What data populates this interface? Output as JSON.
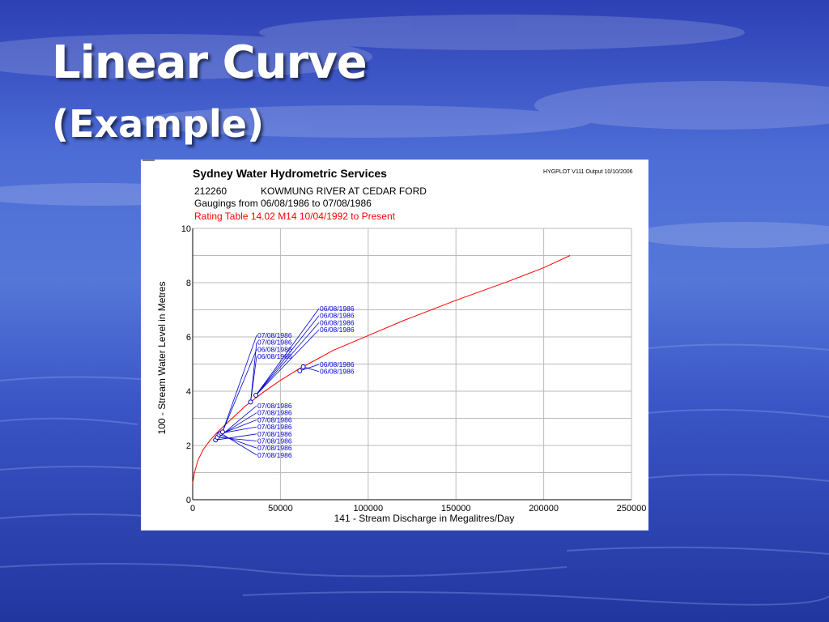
{
  "slide": {
    "title": "Linear Curve",
    "subtitle": "(Example)"
  },
  "chart_data": {
    "type": "scatter",
    "title": "Sydney Water Hydrometric Services",
    "program_note": "HYGPLOT V111  Output 10/10/2006",
    "station_id": "212260",
    "station_name": "KOWMUNG RIVER AT CEDAR FORD",
    "gaugings_range": "Gaugings from 06/08/1986 to 07/08/1986",
    "rating_note": "Rating Table  14.02  M14  10/04/1992 to Present",
    "xlabel": "141 - Stream Discharge in Megalitres/Day",
    "ylabel": "100 - Stream Water Level in Metres",
    "xlim": [
      0,
      250000
    ],
    "ylim": [
      0,
      10
    ],
    "xticks": [
      0,
      50000,
      100000,
      150000,
      200000,
      250000
    ],
    "yticks": [
      0,
      2,
      4,
      6,
      8,
      10
    ],
    "grid": true,
    "colors": {
      "rating_curve": "#ff0000",
      "gaugings": "#0000cc",
      "rating_note": "#ff0000",
      "grid": "#bbbbbb"
    },
    "series": [
      {
        "type": "line",
        "x": [
          0,
          1000,
          3000,
          6000,
          10000,
          15000,
          20000,
          30000,
          40000,
          50000,
          60000,
          70000,
          80000,
          100000,
          120000,
          150000,
          180000,
          200000,
          215000
        ],
        "y": [
          0.6,
          1.0,
          1.45,
          1.85,
          2.2,
          2.55,
          2.85,
          3.45,
          3.95,
          4.4,
          4.8,
          5.15,
          5.5,
          6.05,
          6.6,
          7.35,
          8.05,
          8.55,
          9.0
        ]
      },
      {
        "type": "scatter",
        "points": [
          {
            "x": 13000,
            "y": 2.2,
            "label_group": 2
          },
          {
            "x": 14000,
            "y": 2.3,
            "label_group": 2
          },
          {
            "x": 15000,
            "y": 2.4,
            "label_group": 2
          },
          {
            "x": 16000,
            "y": 2.45,
            "label_group": 2
          },
          {
            "x": 17000,
            "y": 2.5,
            "label_group": 1
          },
          {
            "x": 33000,
            "y": 3.6,
            "label_group": 1
          },
          {
            "x": 36000,
            "y": 3.85,
            "label_group": 0
          },
          {
            "x": 61000,
            "y": 4.75,
            "label_group": 3
          },
          {
            "x": 63000,
            "y": 4.9,
            "label_group": 3
          }
        ]
      }
    ],
    "annotation_groups": [
      {
        "labels": [
          "06/08/1986",
          "06/08/1986",
          "06/08/1986",
          "06/08/1986"
        ]
      },
      {
        "labels": [
          "07/08/1986",
          "07/08/1986",
          "06/08/1986",
          "06/08/1986"
        ]
      },
      {
        "labels": [
          "07/08/1986",
          "07/08/1986",
          "07/08/1986",
          "07/08/1986",
          "07/08/1986",
          "07/08/1986",
          "07/08/1986",
          "07/08/1986"
        ]
      },
      {
        "labels": [
          "06/08/1986",
          "06/08/1986"
        ]
      }
    ]
  }
}
